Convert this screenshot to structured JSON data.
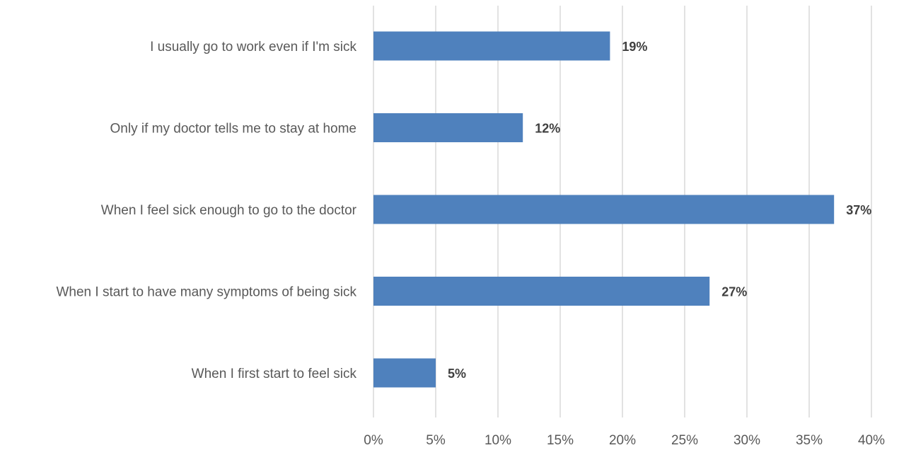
{
  "chart_data": {
    "type": "bar",
    "orientation": "horizontal",
    "title": "",
    "xlabel": "",
    "ylabel": "",
    "categories": [
      "I usually go to work even if I'm sick",
      "Only if my doctor tells me to stay at home",
      "When I feel sick enough to go to the doctor",
      "When I start to have many symptoms of being sick",
      "When I first start to feel sick"
    ],
    "values": [
      19,
      12,
      37,
      27,
      5
    ],
    "data_labels": [
      "19%",
      "12%",
      "37%",
      "27%",
      "5%"
    ],
    "xlim": [
      0,
      40
    ],
    "x_ticks": [
      0,
      5,
      10,
      15,
      20,
      25,
      30,
      35,
      40
    ],
    "x_tick_labels": [
      "0%",
      "5%",
      "10%",
      "15%",
      "20%",
      "25%",
      "30%",
      "35%",
      "40%"
    ],
    "grid": "vertical",
    "legend": "none",
    "colors": {
      "bar": "#4F81BD",
      "grid": "#D9D9D9",
      "label_text": "#595959",
      "data_label_text": "#404040"
    }
  }
}
